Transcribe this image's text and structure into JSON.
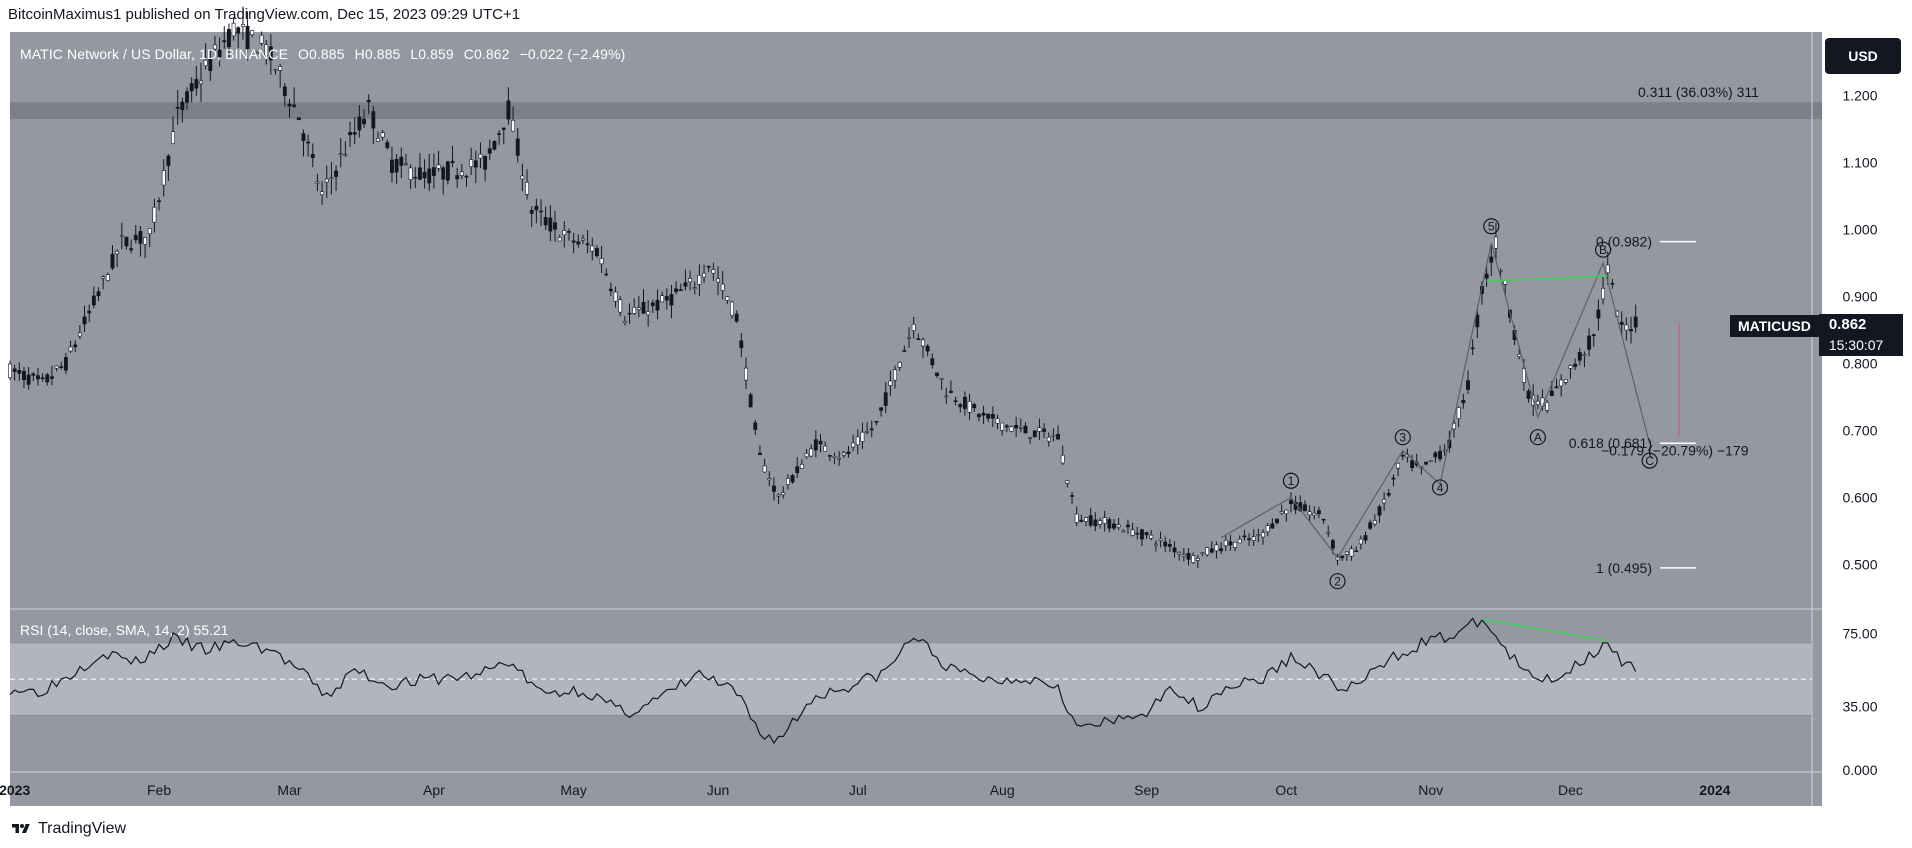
{
  "publisher": "BitcoinMaximus1 published on TradingView.com, Dec 15, 2023 09:29 UTC+1",
  "header": {
    "symbol": "MATIC Network / US Dollar, 1D, BINANCE",
    "open_label": "O",
    "open": "0.885",
    "high_label": "H",
    "high": "0.885",
    "low_label": "L",
    "low": "0.859",
    "close_label": "C",
    "close": "0.862",
    "change": "−0.022 (−2.49%)"
  },
  "currency_button": "USD",
  "last_price": {
    "symbol": "MATICUSD",
    "price": "0.862",
    "countdown": "15:30:07"
  },
  "rsi_header": {
    "label": "RSI (14, close, SMA, 14, 2)",
    "value": "55.21"
  },
  "footer": {
    "brand": "TradingView"
  },
  "colors": {
    "panel_bg": "#9598a1",
    "resistance_zone": "#7d8089",
    "rsi_band": "#b2b5be",
    "divergence": "#39d353",
    "candle": "#ffffff"
  },
  "chart_data": [
    {
      "type": "candlestick",
      "yaxis_ticks": [
        "1.200",
        "1.100",
        "1.000",
        "0.900",
        "0.800",
        "0.700",
        "0.600",
        "0.500"
      ],
      "ylim": [
        0.435,
        1.295
      ],
      "x_ticks": [
        {
          "label": "2023",
          "date": "2023-01-01"
        },
        {
          "label": "Feb",
          "date": "2023-02-01"
        },
        {
          "label": "Mar",
          "date": "2023-03-01"
        },
        {
          "label": "Apr",
          "date": "2023-04-01"
        },
        {
          "label": "May",
          "date": "2023-05-01"
        },
        {
          "label": "Jun",
          "date": "2023-06-01"
        },
        {
          "label": "Jul",
          "date": "2023-07-01"
        },
        {
          "label": "Aug",
          "date": "2023-08-01"
        },
        {
          "label": "Sep",
          "date": "2023-09-01"
        },
        {
          "label": "Oct",
          "date": "2023-10-01"
        },
        {
          "label": "Nov",
          "date": "2023-11-01"
        },
        {
          "label": "Dec",
          "date": "2023-12-01"
        },
        {
          "label": "2024",
          "date": "2024-01-01"
        }
      ],
      "price_path": [
        [
          "2022-12-31",
          0.79
        ],
        [
          "2023-01-07",
          0.77
        ],
        [
          "2023-01-12",
          0.8
        ],
        [
          "2023-01-18",
          0.89
        ],
        [
          "2023-01-24",
          0.98
        ],
        [
          "2023-01-30",
          0.99
        ],
        [
          "2023-02-05",
          1.17
        ],
        [
          "2023-02-11",
          1.24
        ],
        [
          "2023-02-17",
          1.3
        ],
        [
          "2023-02-24",
          1.27
        ],
        [
          "2023-03-03",
          1.17
        ],
        [
          "2023-03-08",
          1.05
        ],
        [
          "2023-03-13",
          1.12
        ],
        [
          "2023-03-18",
          1.18
        ],
        [
          "2023-03-23",
          1.1
        ],
        [
          "2023-03-30",
          1.08
        ],
        [
          "2023-04-06",
          1.09
        ],
        [
          "2023-04-12",
          1.1
        ],
        [
          "2023-04-17",
          1.18
        ],
        [
          "2023-04-22",
          1.03
        ],
        [
          "2023-04-29",
          0.99
        ],
        [
          "2023-05-06",
          0.97
        ],
        [
          "2023-05-12",
          0.87
        ],
        [
          "2023-05-20",
          0.89
        ],
        [
          "2023-05-27",
          0.92
        ],
        [
          "2023-05-30",
          0.95
        ],
        [
          "2023-06-05",
          0.87
        ],
        [
          "2023-06-10",
          0.66
        ],
        [
          "2023-06-14",
          0.6
        ],
        [
          "2023-06-22",
          0.68
        ],
        [
          "2023-06-28",
          0.66
        ],
        [
          "2023-07-05",
          0.71
        ],
        [
          "2023-07-13",
          0.86
        ],
        [
          "2023-07-20",
          0.76
        ],
        [
          "2023-07-28",
          0.72
        ],
        [
          "2023-08-05",
          0.7
        ],
        [
          "2023-08-13",
          0.69
        ],
        [
          "2023-08-17",
          0.57
        ],
        [
          "2023-08-25",
          0.56
        ],
        [
          "2023-09-02",
          0.54
        ],
        [
          "2023-09-11",
          0.51
        ],
        [
          "2023-09-18",
          0.53
        ],
        [
          "2023-09-25",
          0.54
        ],
        [
          "2023-10-02",
          0.59
        ],
        [
          "2023-10-09",
          0.57
        ],
        [
          "2023-10-12",
          0.51
        ],
        [
          "2023-10-16",
          0.52
        ],
        [
          "2023-10-22",
          0.59
        ],
        [
          "2023-10-26",
          0.66
        ],
        [
          "2023-10-30",
          0.64
        ],
        [
          "2023-11-05",
          0.68
        ],
        [
          "2023-11-09",
          0.77
        ],
        [
          "2023-11-12",
          0.91
        ],
        [
          "2023-11-15",
          0.98
        ],
        [
          "2023-11-18",
          0.88
        ],
        [
          "2023-11-22",
          0.75
        ],
        [
          "2023-11-26",
          0.74
        ],
        [
          "2023-12-01",
          0.79
        ],
        [
          "2023-12-06",
          0.84
        ],
        [
          "2023-12-09",
          0.94
        ],
        [
          "2023-12-12",
          0.85
        ],
        [
          "2023-12-15",
          0.862
        ]
      ],
      "resistance_zone": [
        1.165,
        1.19
      ],
      "fibonacci": [
        {
          "label": "0 (0.982)",
          "price": 0.982
        },
        {
          "label": "0.618 (0.681)",
          "price": 0.681
        },
        {
          "label": "1 (0.495)",
          "price": 0.495
        }
      ],
      "measure_up": "0.311 (36.03%) 311",
      "measure_down": "−0.179 (−20.79%) −179",
      "wave_labels": [
        {
          "label": "1",
          "date": "2023-10-02",
          "price": 0.625
        },
        {
          "label": "2",
          "date": "2023-10-12",
          "price": 0.475
        },
        {
          "label": "3",
          "date": "2023-10-26",
          "price": 0.69
        },
        {
          "label": "4",
          "date": "2023-11-03",
          "price": 0.615
        },
        {
          "label": "5",
          "date": "2023-11-14",
          "price": 1.005
        },
        {
          "label": "A",
          "date": "2023-11-24",
          "price": 0.69
        },
        {
          "label": "B",
          "date": "2023-12-08",
          "price": 0.97
        },
        {
          "label": "C",
          "date": "2023-12-18",
          "price": 0.655
        }
      ],
      "wave_path": [
        [
          "2023-09-17",
          0.54
        ],
        [
          "2023-10-02",
          0.6
        ],
        [
          "2023-10-12",
          0.51
        ],
        [
          "2023-10-26",
          0.67
        ],
        [
          "2023-11-03",
          0.62
        ],
        [
          "2023-11-14",
          0.98
        ],
        [
          "2023-11-24",
          0.72
        ],
        [
          "2023-12-08",
          0.95
        ],
        [
          "2023-12-18",
          0.68
        ]
      ],
      "price_divergence": [
        [
          "2023-11-13",
          0.923
        ],
        [
          "2023-12-09",
          0.931
        ]
      ],
      "last_price": 0.862
    },
    {
      "type": "line",
      "name": "RSI",
      "yaxis_ticks": [
        "75.00",
        "35.00",
        "0.000"
      ],
      "ylim": [
        0,
        88
      ],
      "band": [
        30,
        70
      ],
      "midline": 50,
      "path": [
        [
          "2022-12-31",
          45
        ],
        [
          "2023-01-06",
          43
        ],
        [
          "2023-01-12",
          51
        ],
        [
          "2023-01-20",
          65
        ],
        [
          "2023-01-27",
          59
        ],
        [
          "2023-02-04",
          72
        ],
        [
          "2023-02-11",
          66
        ],
        [
          "2023-02-18",
          70
        ],
        [
          "2023-02-25",
          66
        ],
        [
          "2023-03-03",
          55
        ],
        [
          "2023-03-09",
          40
        ],
        [
          "2023-03-15",
          55
        ],
        [
          "2023-03-22",
          47
        ],
        [
          "2023-04-01",
          50
        ],
        [
          "2023-04-10",
          52
        ],
        [
          "2023-04-17",
          60
        ],
        [
          "2023-04-24",
          42
        ],
        [
          "2023-05-03",
          44
        ],
        [
          "2023-05-12",
          31
        ],
        [
          "2023-05-20",
          40
        ],
        [
          "2023-05-28",
          53
        ],
        [
          "2023-06-05",
          42
        ],
        [
          "2023-06-10",
          20
        ],
        [
          "2023-06-14",
          17
        ],
        [
          "2023-06-22",
          41
        ],
        [
          "2023-06-29",
          46
        ],
        [
          "2023-07-07",
          54
        ],
        [
          "2023-07-13",
          74
        ],
        [
          "2023-07-21",
          55
        ],
        [
          "2023-07-30",
          49
        ],
        [
          "2023-08-06",
          51
        ],
        [
          "2023-08-13",
          47
        ],
        [
          "2023-08-17",
          23
        ],
        [
          "2023-08-26",
          27
        ],
        [
          "2023-09-02",
          33
        ],
        [
          "2023-09-07",
          46
        ],
        [
          "2023-09-12",
          34
        ],
        [
          "2023-09-18",
          46
        ],
        [
          "2023-09-26",
          50
        ],
        [
          "2023-10-02",
          62
        ],
        [
          "2023-10-09",
          52
        ],
        [
          "2023-10-12",
          44
        ],
        [
          "2023-10-17",
          48
        ],
        [
          "2023-10-24",
          62
        ],
        [
          "2023-10-31",
          71
        ],
        [
          "2023-11-06",
          74
        ],
        [
          "2023-11-12",
          83
        ],
        [
          "2023-11-18",
          63
        ],
        [
          "2023-11-23",
          49
        ],
        [
          "2023-11-29",
          52
        ],
        [
          "2023-12-05",
          63
        ],
        [
          "2023-12-09",
          72
        ],
        [
          "2023-12-12",
          58
        ],
        [
          "2023-12-15",
          55
        ]
      ],
      "divergence": [
        [
          "2023-11-12",
          83
        ],
        [
          "2023-12-09",
          71
        ]
      ]
    }
  ]
}
